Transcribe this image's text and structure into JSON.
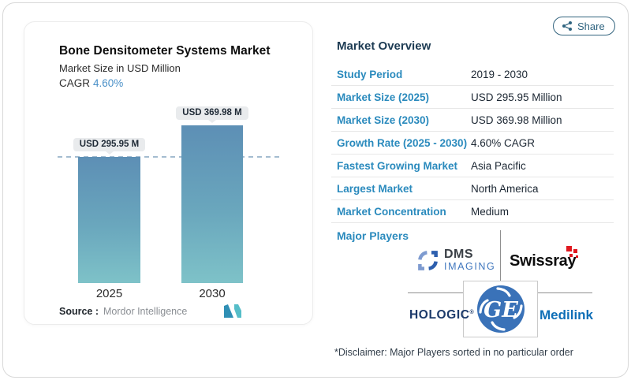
{
  "chart_data": {
    "type": "bar",
    "title": "Bone Densitometer Systems Market",
    "subtitle": "Market Size in USD Million",
    "cagr_label": "CAGR",
    "cagr_value": "4.60%",
    "categories": [
      "2025",
      "2030"
    ],
    "values": [
      295.95,
      369.98
    ],
    "bar_labels": [
      "USD 295.95 M",
      "USD 369.98 M"
    ],
    "xlabel": "",
    "ylabel": "Market Size (USD Million)",
    "ylim": [
      0,
      370
    ],
    "grid": "off",
    "legend": "none",
    "reference_line": "dashed line at 2025 value (295.95)"
  },
  "chart": {
    "source_label": "Source :",
    "source_value": "Mordor Intelligence"
  },
  "share": {
    "label": "Share"
  },
  "overview": {
    "heading": "Market Overview",
    "rows": [
      {
        "label": "Study Period",
        "value": "2019 - 2030"
      },
      {
        "label": "Market Size (2025)",
        "value": "USD 295.95 Million"
      },
      {
        "label": "Market Size (2030)",
        "value": "USD 369.98 Million"
      },
      {
        "label": "Growth Rate (2025 - 2030)",
        "value": "4.60% CAGR"
      },
      {
        "label": "Fastest Growing Market",
        "value": "Asia Pacific"
      },
      {
        "label": "Largest Market",
        "value": "North America"
      },
      {
        "label": "Market Concentration",
        "value": "Medium"
      }
    ],
    "major_players_label": "Major Players",
    "disclaimer": "*Disclaimer: Major Players sorted in no particular order"
  },
  "players": {
    "dms": {
      "line1": "DMS",
      "line2": "IMAGING"
    },
    "swissray": {
      "name": "Swissray"
    },
    "hologic": {
      "name": "HOLOGIC",
      "mark": "®"
    },
    "ge": {
      "monogram": "GE"
    },
    "medilink": {
      "name": "Medilink"
    }
  },
  "icons": {
    "share": "share-nodes-icon",
    "mordor": "mordor-intelligence-m-mark",
    "dms": "dms-brackets-mark",
    "ge": "ge-circle-monogram"
  },
  "colors": {
    "label_blue": "#2a8abd",
    "heading_navy": "#1d3b53",
    "cagr_blue": "#4a90c8",
    "bar_gradient_top": "#5d8fb5",
    "bar_gradient_bottom": "#7ec2c8",
    "pill_bg": "#e9ebed",
    "share_teal": "#2f6480",
    "swissray_red": "#e0181f",
    "hologic_navy": "#1c3a6a",
    "medilink_blue": "#0f6fb7",
    "ge_blue": "#3a72b8"
  }
}
